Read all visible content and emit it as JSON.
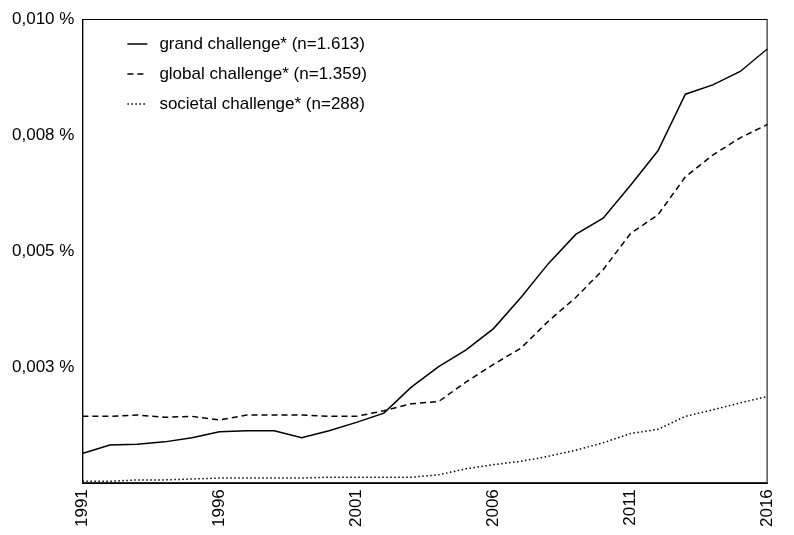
{
  "chart_data": {
    "type": "line",
    "x": [
      1991,
      1992,
      1993,
      1994,
      1995,
      1996,
      1997,
      1998,
      1999,
      2000,
      2001,
      2002,
      2003,
      2004,
      2005,
      2006,
      2007,
      2008,
      2009,
      2010,
      2011,
      2012,
      2013,
      2014,
      2015,
      2016
    ],
    "series": [
      {
        "name": "grand challenge* (n=1.613)",
        "color": "#000000",
        "line_style": "solid",
        "values": [
          0.00064,
          0.00082,
          0.00084,
          0.00089,
          0.00098,
          0.00111,
          0.00113,
          0.00113,
          0.00098,
          0.00113,
          0.00131,
          0.00151,
          0.00207,
          0.00251,
          0.00287,
          0.00333,
          0.004,
          0.00473,
          0.00536,
          0.00571,
          0.00642,
          0.00716,
          0.00838,
          0.00858,
          0.00887,
          0.00936
        ]
      },
      {
        "name": "global challenge* (n=1.359)",
        "color": "#000000",
        "line_style": "dashed",
        "values": [
          0.00144,
          0.00144,
          0.00147,
          0.00142,
          0.00144,
          0.00136,
          0.00147,
          0.00147,
          0.00147,
          0.00144,
          0.00144,
          0.00156,
          0.00171,
          0.00176,
          0.00218,
          0.00256,
          0.00291,
          0.00349,
          0.004,
          0.0046,
          0.00538,
          0.00578,
          0.0066,
          0.00707,
          0.00744,
          0.00773
        ]
      },
      {
        "name": "societal challenge* (n=288)",
        "color": "#000000",
        "line_style": "dotted",
        "values": [
          4e-05,
          4e-05,
          7e-05,
          7e-05,
          9e-05,
          0.00011,
          0.00011,
          0.00011,
          0.00011,
          0.00013,
          0.00013,
          0.00013,
          0.00013,
          0.00018,
          0.00031,
          0.0004,
          0.00047,
          0.00058,
          0.00071,
          0.00087,
          0.00107,
          0.00116,
          0.00144,
          0.00158,
          0.00173,
          0.00187
        ]
      }
    ],
    "xlim": [
      1991,
      2016
    ],
    "xticks": [
      1991,
      1996,
      2001,
      2006,
      2011,
      2016
    ],
    "ylim": [
      0,
      0.01
    ],
    "yticks": [
      {
        "value": 0.0025,
        "label": "0,003 %"
      },
      {
        "value": 0.005,
        "label": "0,005 %"
      },
      {
        "value": 0.0075,
        "label": "0,008 %"
      },
      {
        "value": 0.01,
        "label": "0,010 %"
      }
    ],
    "grid": false,
    "legend": "top-left"
  }
}
